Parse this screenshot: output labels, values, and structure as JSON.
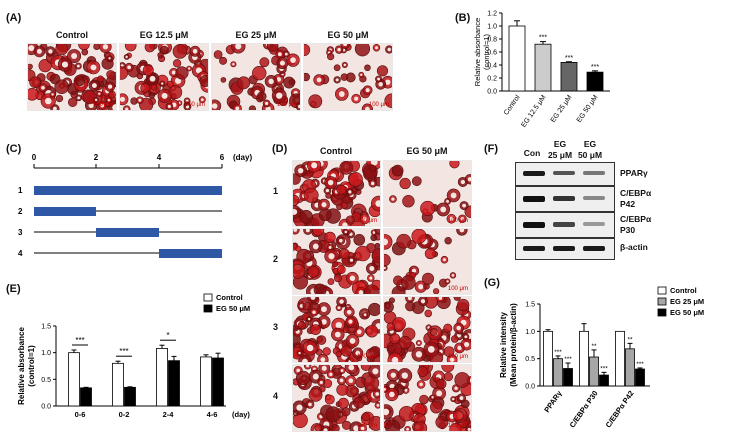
{
  "panels": {
    "A": "(A)",
    "B": "(B)",
    "C": "(C)",
    "D": "(D)",
    "E": "(E)",
    "F": "(F)",
    "G": "(G)"
  },
  "panel_a": {
    "headers": [
      "Control",
      "EG 12.5 μM",
      "EG 25 μM",
      "EG 50 μM"
    ],
    "scale_label": "100 μm"
  },
  "panel_c": {
    "axis_ticks": [
      "0",
      "2",
      "4",
      "6"
    ],
    "unit": "(day)",
    "rows": [
      "1",
      "2",
      "3",
      "4"
    ]
  },
  "panel_d": {
    "headers": [
      "Control",
      "EG 50 μM"
    ],
    "rows": [
      "1",
      "2",
      "3",
      "4"
    ],
    "scale_label": "100 μm"
  },
  "panel_f": {
    "lane_labels": [
      "Con",
      "EG\n25 μM",
      "EG\n50 μM"
    ],
    "bands": [
      "PPARγ",
      "C/EBPα\nP42",
      "C/EBPα\nP30",
      "β-actin"
    ]
  },
  "chart_data": [
    {
      "panel": "B",
      "type": "bar",
      "categories": [
        "Control",
        "EG 12.5 μM",
        "EG 25 μM",
        "EG 50 μM"
      ],
      "values": [
        1.0,
        0.72,
        0.44,
        0.29
      ],
      "errors": [
        0.08,
        0.04,
        0.01,
        0.02
      ],
      "significance": [
        "",
        "***",
        "***",
        "***"
      ],
      "ylabel": "Relative absorbance\n(control=1)",
      "ylim": [
        0,
        1.2
      ],
      "yticks": [
        "0.0",
        "0.2",
        "0.4",
        "0.6",
        "0.8",
        "1.0",
        "1.2"
      ],
      "colors": [
        "#ffffff",
        "#cccccc",
        "#666666",
        "#000000"
      ]
    },
    {
      "panel": "E",
      "type": "bar",
      "categories": [
        "0-6",
        "0-2",
        "2-4",
        "4-6"
      ],
      "xunit": "(day)",
      "series": [
        {
          "name": "Control",
          "values": [
            1.0,
            0.8,
            1.08,
            0.92
          ],
          "errors": [
            0.05,
            0.04,
            0.06,
            0.04
          ],
          "color": "#ffffff"
        },
        {
          "name": "EG 50 μM",
          "values": [
            0.34,
            0.35,
            0.85,
            0.9
          ],
          "errors": [
            0.01,
            0.01,
            0.08,
            0.09
          ],
          "color": "#000000"
        }
      ],
      "significance": [
        "***",
        "***",
        "*",
        ""
      ],
      "ylabel": "Relative absorbance\n(control=1)",
      "ylim": [
        0,
        1.5
      ],
      "yticks": [
        "0.0",
        "0.5",
        "1.0",
        "1.5"
      ],
      "legend": "top-right"
    },
    {
      "panel": "G",
      "type": "bar",
      "categories": [
        "PPARγ",
        "C/EBPα P30",
        "C/EBPα P42"
      ],
      "series": [
        {
          "name": "Control",
          "values": [
            1.0,
            1.0,
            1.0
          ],
          "errors": [
            0.03,
            0.14,
            0.0
          ],
          "color": "#ffffff",
          "significance": [
            "",
            "",
            ""
          ]
        },
        {
          "name": "EG 25 μM",
          "values": [
            0.5,
            0.53,
            0.68
          ],
          "errors": [
            0.05,
            0.13,
            0.1
          ],
          "color": "#a6a6a6",
          "significance": [
            "***",
            "**",
            "**"
          ]
        },
        {
          "name": "EG 50 μM",
          "values": [
            0.32,
            0.2,
            0.31
          ],
          "errors": [
            0.1,
            0.05,
            0.02
          ],
          "color": "#000000",
          "significance": [
            "***",
            "***",
            "***"
          ]
        }
      ],
      "ylabel": "Relative intensity\n(Mean protein/β-actin)",
      "ylim": [
        0,
        1.5
      ],
      "yticks": [
        "0.0",
        "0.5",
        "1.0",
        "1.5"
      ],
      "legend": "top-right"
    }
  ]
}
